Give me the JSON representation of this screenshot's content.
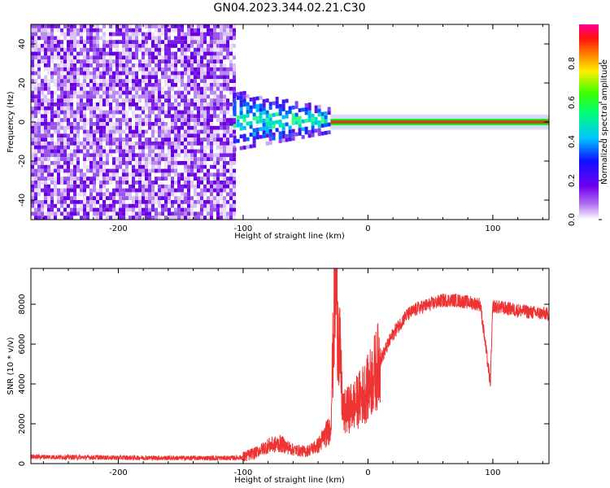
{
  "title": "GN04.2023.344.02.21.C30",
  "chart_data": [
    {
      "type": "heatmap",
      "description_of_pattern": "",
      "xlabel": "Height of straight line (km)",
      "ylabel": "Frequency (Hz)",
      "xlim": [
        -270,
        145
      ],
      "ylim": [
        -50,
        50
      ],
      "xticks": [
        -200,
        -100,
        0,
        100
      ],
      "yticks": [
        -40,
        -20,
        0,
        20,
        40
      ],
      "colorbar": {
        "label": "Normalized spectral amplitude",
        "range": [
          0.0,
          1.0
        ],
        "ticks": [
          0.0,
          0.2,
          0.4,
          0.6,
          0.8
        ],
        "colormap": "rainbow: white-purple-blue-cyan-green-yellow-orange-red-magenta"
      },
      "regions": [
        {
          "x_range": [
            -270,
            -108
          ],
          "freq_range": [
            -50,
            50
          ],
          "amplitude": "~0.0-0.2 (broadband noise)"
        },
        {
          "x_range": [
            -108,
            -30
          ],
          "freq_range": [
            -15,
            15
          ],
          "amplitude": "~0.1-0.4"
        },
        {
          "x_range": [
            -30,
            145
          ],
          "freq_range": [
            -1,
            1
          ],
          "amplitude": "~0.8-0.95 (narrow line at 0 Hz)"
        }
      ]
    },
    {
      "type": "line",
      "xlabel": "Height of straight line (km)",
      "ylabel": "SNR (10 * v/v)",
      "xlim": [
        -270,
        145
      ],
      "ylim": [
        0,
        9800
      ],
      "xticks": [
        -200,
        -100,
        0,
        100
      ],
      "yticks": [
        0,
        2000,
        4000,
        6000,
        8000
      ],
      "series": [
        {
          "color": "#ee3333",
          "x": [
            -270,
            -250,
            -200,
            -150,
            -110,
            -100,
            -90,
            -80,
            -70,
            -60,
            -50,
            -40,
            -30,
            -26,
            -20,
            -10,
            0,
            10,
            20,
            30,
            40,
            50,
            60,
            70,
            80,
            90,
            98,
            100,
            110,
            120,
            130,
            145
          ],
          "y": [
            350,
            330,
            300,
            280,
            280,
            320,
            550,
            900,
            1000,
            700,
            600,
            900,
            1800,
            9500,
            2500,
            3000,
            3800,
            5200,
            6500,
            7400,
            7800,
            8000,
            8200,
            8200,
            8100,
            8000,
            4000,
            7900,
            7800,
            7700,
            7600,
            7500
          ]
        }
      ]
    }
  ]
}
